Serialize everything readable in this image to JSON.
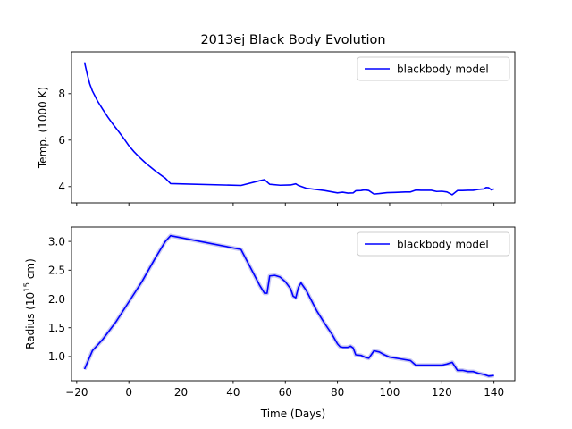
{
  "figure": {
    "title": "2013ej Black Body Evolution"
  },
  "chart_data": [
    {
      "type": "line",
      "ylabel": "Temp. (1000 K)",
      "xlabel": "",
      "xlim": [
        -22,
        148
      ],
      "ylim": [
        3.3,
        9.8
      ],
      "xticks": [
        -20,
        0,
        20,
        40,
        60,
        80,
        100,
        120,
        140
      ],
      "yticks": [
        4,
        6,
        8
      ],
      "ytick_labels": [
        "4",
        "6",
        "8"
      ],
      "legend": "top-right",
      "series": [
        {
          "name": "blackbody model",
          "color": "#0000ff",
          "x": [
            -17,
            -16,
            -15,
            -14,
            -13,
            -12,
            -10,
            -8,
            -6,
            -4,
            -2,
            0,
            2,
            4,
            6,
            8,
            10,
            12,
            14,
            16,
            43,
            50,
            52,
            54,
            58,
            62,
            64,
            65,
            68,
            75,
            80,
            82,
            84,
            86,
            87,
            89,
            90,
            91,
            92,
            94,
            96,
            99,
            102,
            106,
            108,
            110,
            112,
            116,
            118,
            120,
            122,
            124,
            126,
            128,
            130,
            132,
            134,
            136,
            137,
            138,
            139,
            140
          ],
          "y": [
            9.35,
            8.85,
            8.42,
            8.12,
            7.9,
            7.68,
            7.32,
            6.98,
            6.67,
            6.38,
            6.08,
            5.76,
            5.5,
            5.27,
            5.06,
            4.87,
            4.69,
            4.52,
            4.36,
            4.13,
            4.05,
            4.25,
            4.3,
            4.1,
            4.06,
            4.07,
            4.12,
            4.05,
            3.93,
            3.83,
            3.73,
            3.76,
            3.72,
            3.73,
            3.82,
            3.83,
            3.85,
            3.85,
            3.83,
            3.68,
            3.7,
            3.74,
            3.75,
            3.77,
            3.77,
            3.85,
            3.84,
            3.84,
            3.79,
            3.8,
            3.77,
            3.65,
            3.83,
            3.83,
            3.84,
            3.84,
            3.88,
            3.9,
            3.96,
            3.95,
            3.86,
            3.9
          ]
        }
      ]
    },
    {
      "type": "line",
      "ylabel": "Radius (10^15 cm)",
      "xlabel": "Time (Days)",
      "xlim": [
        -22,
        148
      ],
      "ylim": [
        0.58,
        3.25
      ],
      "xticks": [
        -20,
        0,
        20,
        40,
        60,
        80,
        100,
        120,
        140
      ],
      "xtick_labels": [
        "−20",
        "0",
        "20",
        "40",
        "60",
        "80",
        "100",
        "120",
        "140"
      ],
      "yticks": [
        1.0,
        1.5,
        2.0,
        2.5,
        3.0
      ],
      "ytick_labels": [
        "1.0",
        "1.5",
        "2.0",
        "2.5",
        "3.0"
      ],
      "legend": "top-right",
      "series": [
        {
          "name": "blackbody model",
          "color": "#0000ff",
          "x": [
            -17,
            -14,
            -10,
            -5,
            0,
            5,
            10,
            14,
            16,
            43,
            46,
            50,
            52,
            53,
            54,
            56,
            58,
            60,
            62,
            63,
            64,
            65,
            66,
            68,
            72,
            75,
            78,
            80,
            81,
            82,
            84,
            85,
            86,
            87,
            89,
            91,
            92,
            94,
            96,
            98,
            100,
            104,
            108,
            110,
            112,
            116,
            120,
            122,
            124,
            126,
            128,
            130,
            132,
            134,
            136,
            138,
            140
          ],
          "y": [
            0.78,
            1.1,
            1.3,
            1.6,
            1.95,
            2.3,
            2.7,
            3.0,
            3.1,
            2.86,
            2.6,
            2.25,
            2.1,
            2.1,
            2.4,
            2.41,
            2.38,
            2.3,
            2.18,
            2.05,
            2.02,
            2.2,
            2.28,
            2.15,
            1.8,
            1.58,
            1.38,
            1.22,
            1.17,
            1.16,
            1.16,
            1.18,
            1.15,
            1.03,
            1.02,
            0.98,
            0.97,
            1.1,
            1.08,
            1.03,
            0.99,
            0.96,
            0.93,
            0.85,
            0.85,
            0.85,
            0.85,
            0.87,
            0.9,
            0.76,
            0.76,
            0.74,
            0.74,
            0.71,
            0.69,
            0.66,
            0.67
          ]
        }
      ]
    }
  ]
}
